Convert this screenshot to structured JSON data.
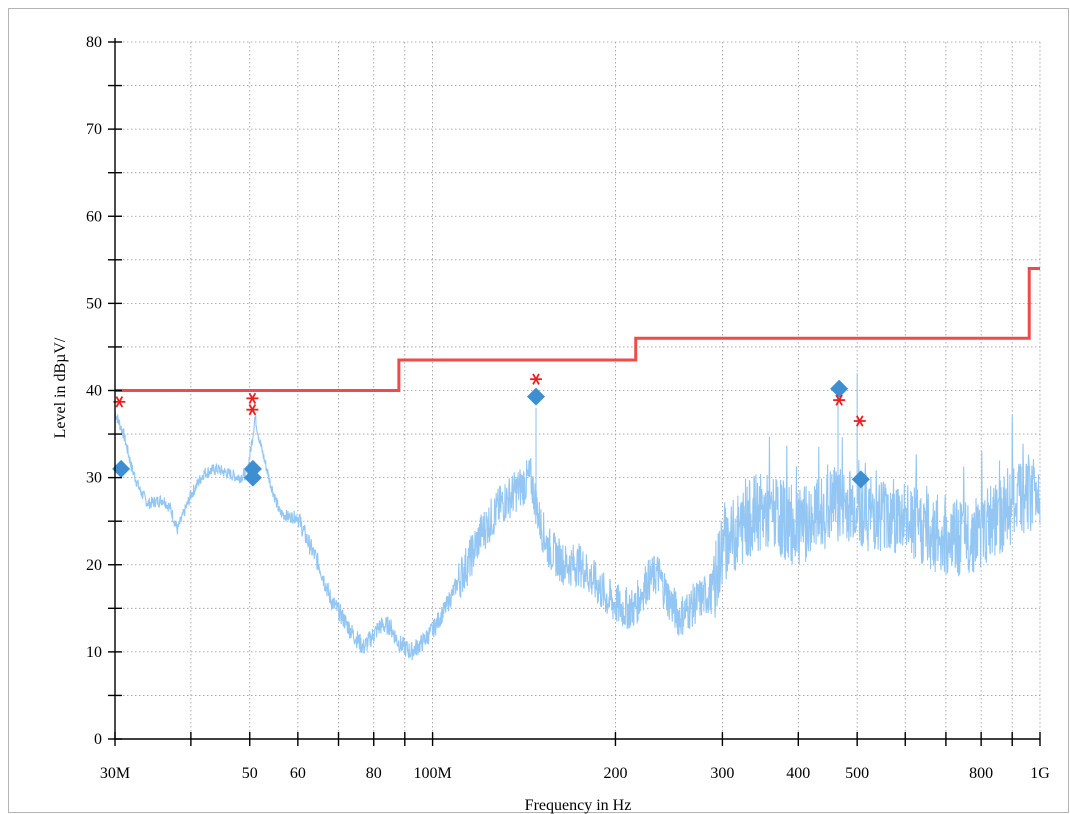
{
  "chart_data": {
    "type": "line",
    "xscale": "log",
    "xlim": [
      30000000,
      1000000000
    ],
    "ylim": [
      0,
      80
    ],
    "grid": true,
    "xlabel": "Frequency in Hz",
    "ylabel": "Level in dBµV/",
    "xticks": [
      {
        "value": 30000000,
        "label": "30M"
      },
      {
        "value": 50000000,
        "label": "50"
      },
      {
        "value": 60000000,
        "label": "60"
      },
      {
        "value": 80000000,
        "label": "80"
      },
      {
        "value": 100000000,
        "label": "100M"
      },
      {
        "value": 200000000,
        "label": "200"
      },
      {
        "value": 300000000,
        "label": "300"
      },
      {
        "value": 400000000,
        "label": "400"
      },
      {
        "value": 500000000,
        "label": "500"
      },
      {
        "value": 800000000,
        "label": "800"
      },
      {
        "value": 1000000000,
        "label": "1G"
      }
    ],
    "xminor": [
      40000000,
      70000000,
      90000000,
      600000000,
      700000000,
      900000000
    ],
    "yticks": [
      {
        "value": 0,
        "label": "0"
      },
      {
        "value": 10,
        "label": "10"
      },
      {
        "value": 20,
        "label": "20"
      },
      {
        "value": 30,
        "label": "30"
      },
      {
        "value": 40,
        "label": "40"
      },
      {
        "value": 50,
        "label": "50"
      },
      {
        "value": 60,
        "label": "60"
      },
      {
        "value": 70,
        "label": "70"
      },
      {
        "value": 80,
        "label": "80"
      }
    ],
    "limit_line": {
      "color": "#ee4b4b",
      "points": [
        [
          30000000,
          40
        ],
        [
          88000000,
          40
        ],
        [
          88000000,
          43.5
        ],
        [
          216000000,
          43.5
        ],
        [
          216000000,
          46
        ],
        [
          960000000,
          46
        ],
        [
          960000000,
          54
        ],
        [
          1000000000,
          54
        ]
      ]
    },
    "trace": {
      "color": "#93c6f2",
      "noise_seed": 7,
      "points": [
        [
          30000000,
          37.5
        ],
        [
          31000000,
          35
        ],
        [
          32000000,
          31
        ],
        [
          33000000,
          28.5
        ],
        [
          34000000,
          27
        ],
        [
          36000000,
          27.5
        ],
        [
          37000000,
          26.5
        ],
        [
          38000000,
          24
        ],
        [
          39000000,
          26
        ],
        [
          40000000,
          28
        ],
        [
          42000000,
          30.5
        ],
        [
          44000000,
          31
        ],
        [
          46000000,
          30.5
        ],
        [
          48000000,
          30
        ],
        [
          49500000,
          30.5
        ],
        [
          50500000,
          34.5
        ],
        [
          51000000,
          37
        ],
        [
          52000000,
          34
        ],
        [
          54000000,
          29.5
        ],
        [
          56000000,
          26
        ],
        [
          58000000,
          25.5
        ],
        [
          60000000,
          25.5
        ],
        [
          62000000,
          23
        ],
        [
          65000000,
          20
        ],
        [
          68000000,
          16
        ],
        [
          71000000,
          14
        ],
        [
          74000000,
          12
        ],
        [
          77000000,
          10.5
        ],
        [
          79000000,
          11.5
        ],
        [
          82000000,
          13
        ],
        [
          85000000,
          13
        ],
        [
          88000000,
          11
        ],
        [
          92000000,
          10
        ],
        [
          96000000,
          11
        ],
        [
          100000000,
          12.5
        ],
        [
          105000000,
          15
        ],
        [
          110000000,
          18
        ],
        [
          115000000,
          20.5
        ],
        [
          120000000,
          23.5
        ],
        [
          130000000,
          27
        ],
        [
          140000000,
          29
        ],
        [
          145000000,
          30
        ],
        [
          150000000,
          25
        ],
        [
          155000000,
          22
        ],
        [
          165000000,
          20
        ],
        [
          175000000,
          20
        ],
        [
          185000000,
          18
        ],
        [
          195000000,
          16
        ],
        [
          205000000,
          15
        ],
        [
          215000000,
          15
        ],
        [
          225000000,
          18
        ],
        [
          235000000,
          19
        ],
        [
          245000000,
          16
        ],
        [
          255000000,
          14
        ],
        [
          265000000,
          15
        ],
        [
          275000000,
          16
        ],
        [
          290000000,
          17
        ],
        [
          300000000,
          22
        ],
        [
          320000000,
          24
        ],
        [
          340000000,
          26
        ],
        [
          360000000,
          26
        ],
        [
          380000000,
          25
        ],
        [
          400000000,
          24
        ],
        [
          420000000,
          25
        ],
        [
          440000000,
          26
        ],
        [
          460000000,
          27
        ],
        [
          480000000,
          27
        ],
        [
          500000000,
          27
        ],
        [
          520000000,
          26
        ],
        [
          560000000,
          26
        ],
        [
          600000000,
          25
        ],
        [
          650000000,
          24
        ],
        [
          700000000,
          23
        ],
        [
          750000000,
          23
        ],
        [
          800000000,
          24
        ],
        [
          850000000,
          25
        ],
        [
          900000000,
          27
        ],
        [
          950000000,
          28
        ],
        [
          1000000000,
          29
        ]
      ],
      "spikes": [
        [
          148000000,
          38
        ],
        [
          465000000,
          39
        ],
        [
          500000000,
          42
        ]
      ]
    },
    "peak_markers": {
      "symbol": "asterisk",
      "color": "#e82020",
      "points": [
        [
          30500000,
          38.7
        ],
        [
          50500000,
          39.1
        ],
        [
          50500000,
          37.8
        ],
        [
          148000000,
          41.3
        ],
        [
          467000000,
          38.9
        ],
        [
          505000000,
          36.5
        ]
      ]
    },
    "final_markers": {
      "symbol": "diamond",
      "color": "#3e8fd2",
      "points": [
        [
          30700000,
          31
        ],
        [
          50600000,
          31
        ],
        [
          50600000,
          30
        ],
        [
          148000000,
          39.3
        ],
        [
          467000000,
          40.2
        ],
        [
          507000000,
          29.8
        ]
      ]
    }
  }
}
